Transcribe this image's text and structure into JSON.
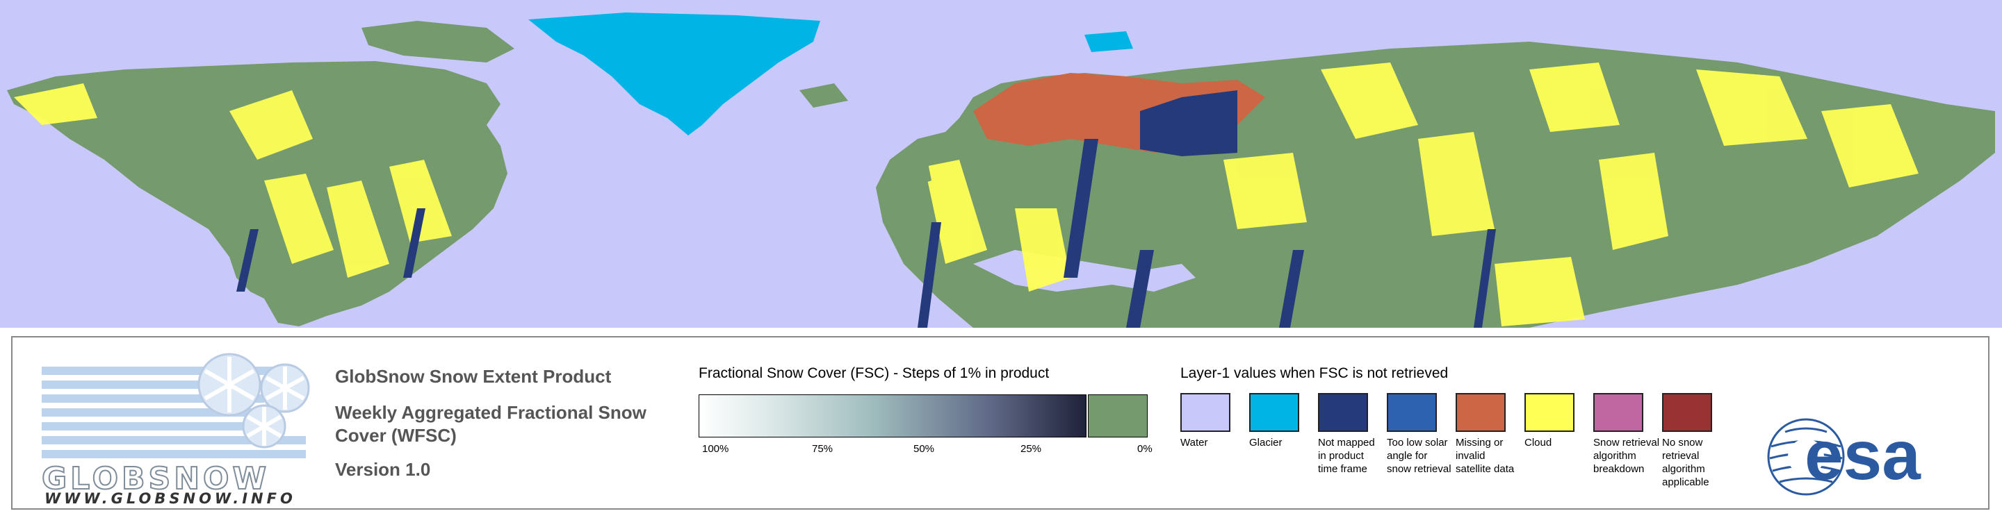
{
  "map": {
    "colors": {
      "water": "#c8c8fa",
      "snow_free": "#759a6d",
      "cloud": "#ffff55",
      "glacier": "#00b4e6",
      "not_mapped": "#243a7a",
      "missing": "#cc6644"
    }
  },
  "branding": {
    "name": "GLOBSNOW",
    "url": "WWW.GLOBSNOW.INFO",
    "esa": "esa"
  },
  "product": {
    "title": "GlobSnow Snow Extent Product",
    "subtitle_line1": "Weekly Aggregated Fractional Snow",
    "subtitle_line2": "Cover (WFSC)",
    "version": "Version 1.0"
  },
  "fsc_legend": {
    "title": "Fractional Snow Cover (FSC) - Steps of 1% in product",
    "ticks": [
      "100%",
      "75%",
      "50%",
      "25%",
      "0%"
    ],
    "gradient_colors": [
      "#ffffff",
      "#9fbcbd",
      "#20223a"
    ],
    "zero_color": "#759a6d"
  },
  "layer1_legend": {
    "title": "Layer-1 values when FSC is not retrieved",
    "items": [
      {
        "label": "Water",
        "color": "#c8c8fa"
      },
      {
        "label": "Glacier",
        "color": "#00b4e6"
      },
      {
        "label": "Not mapped in product time frame",
        "color": "#243a7a"
      },
      {
        "label": "Too low solar angle for snow retrieval",
        "color": "#2c62b0"
      },
      {
        "label": "Missing or invalid satellite data",
        "color": "#cc6644"
      },
      {
        "label": "Cloud",
        "color": "#ffff55"
      },
      {
        "label": "Snow retrieval algorithm breakdown",
        "color": "#c066a0"
      },
      {
        "label": "No snow retrieval algorithm applicable",
        "color": "#993333"
      }
    ]
  }
}
